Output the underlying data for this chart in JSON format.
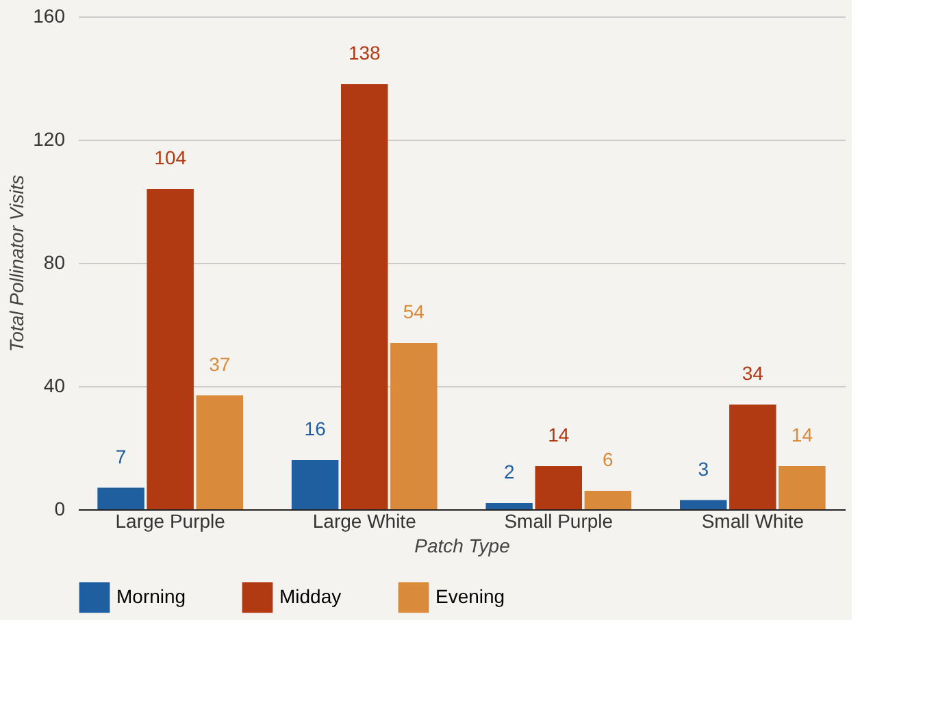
{
  "chart_data": {
    "type": "bar",
    "xlabel": "Patch Type",
    "ylabel": "Total Pollinator Visits",
    "categories": [
      "Large Purple",
      "Large White",
      "Small Purple",
      "Small White"
    ],
    "series": [
      {
        "name": "Morning",
        "color": "#1f5fa0",
        "values": [
          7,
          16,
          2,
          3
        ]
      },
      {
        "name": "Midday",
        "color": "#b23a12",
        "values": [
          104,
          138,
          14,
          34
        ]
      },
      {
        "name": "Evening",
        "color": "#d98a3a",
        "values": [
          37,
          54,
          6,
          14
        ]
      }
    ],
    "ylim": [
      0,
      160
    ],
    "yticks": [
      0,
      40,
      80,
      120,
      160
    ],
    "grid": "y",
    "legend": "bottom",
    "data_labels": true
  }
}
